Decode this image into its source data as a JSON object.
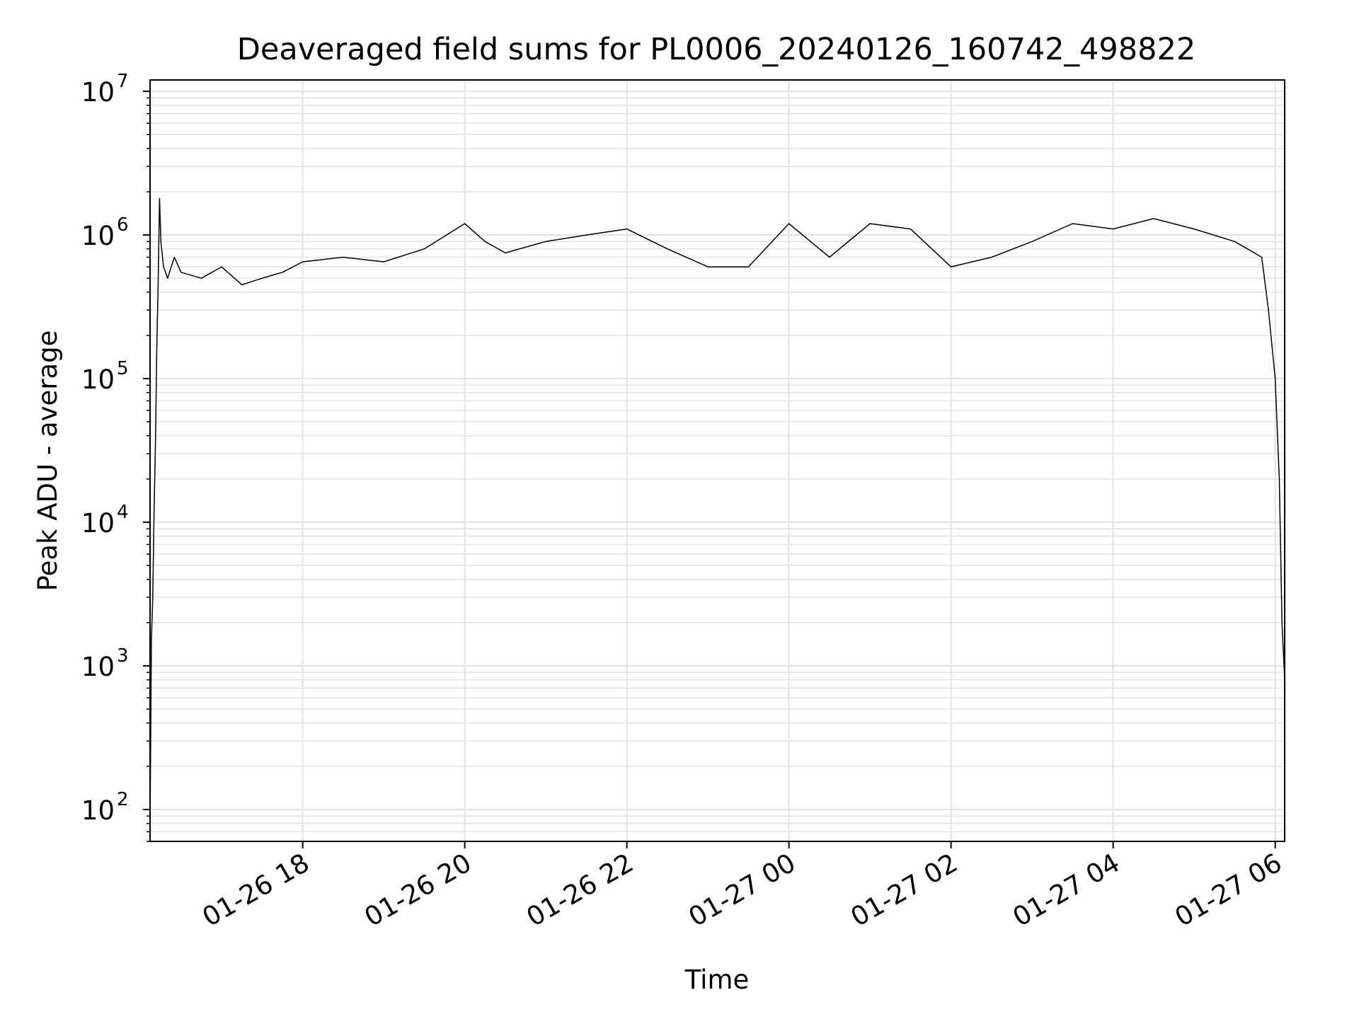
{
  "chart_data": {
    "type": "line",
    "title": "Deaveraged field sums for PL0006_20240126_160742_498822",
    "xlabel": "Time",
    "ylabel": "Peak ADU - average",
    "yscale": "log",
    "ylim": [
      60,
      12000000
    ],
    "xlim": [
      "2024-01-26 16:07",
      "2024-01-27 06:07"
    ],
    "x_tick_labels": [
      "01-26 18",
      "01-26 20",
      "01-26 22",
      "01-27 00",
      "01-27 02",
      "01-27 04",
      "01-27 06"
    ],
    "x_tick_values": [
      "2024-01-26 18:00",
      "2024-01-26 20:00",
      "2024-01-26 22:00",
      "2024-01-27 00:00",
      "2024-01-27 02:00",
      "2024-01-27 04:00",
      "2024-01-27 06:00"
    ],
    "y_tick_values": [
      100,
      1000,
      10000,
      100000,
      1000000,
      10000000
    ],
    "y_tick_bases": [
      "10",
      "10",
      "10",
      "10",
      "10",
      "10"
    ],
    "y_tick_exponents": [
      "2",
      "3",
      "4",
      "5",
      "6",
      "7"
    ],
    "grid": true,
    "line_color": "#000000",
    "series": [
      {
        "x": [
          "2024-01-26 16:07",
          "2024-01-26 16:08",
          "2024-01-26 16:09",
          "2024-01-26 16:10",
          "2024-01-26 16:11",
          "2024-01-26 16:12",
          "2024-01-26 16:13",
          "2024-01-26 16:14",
          "2024-01-26 16:15",
          "2024-01-26 16:17",
          "2024-01-26 16:20",
          "2024-01-26 16:25",
          "2024-01-26 16:30",
          "2024-01-26 16:45",
          "2024-01-26 17:00",
          "2024-01-26 17:15",
          "2024-01-26 17:30",
          "2024-01-26 17:45",
          "2024-01-26 18:00",
          "2024-01-26 18:30",
          "2024-01-26 19:00",
          "2024-01-26 19:30",
          "2024-01-26 20:00",
          "2024-01-26 20:15",
          "2024-01-26 20:30",
          "2024-01-26 21:00",
          "2024-01-26 21:30",
          "2024-01-26 22:00",
          "2024-01-26 22:30",
          "2024-01-26 23:00",
          "2024-01-26 23:30",
          "2024-01-27 00:00",
          "2024-01-27 00:30",
          "2024-01-27 01:00",
          "2024-01-27 01:30",
          "2024-01-27 02:00",
          "2024-01-27 02:30",
          "2024-01-27 03:00",
          "2024-01-27 03:30",
          "2024-01-27 04:00",
          "2024-01-27 04:30",
          "2024-01-27 05:00",
          "2024-01-27 05:30",
          "2024-01-27 05:50",
          "2024-01-27 05:55",
          "2024-01-27 06:00",
          "2024-01-27 06:03",
          "2024-01-27 06:05",
          "2024-01-27 06:07"
        ],
        "y": [
          80,
          1500,
          3000,
          12000,
          35000,
          160000,
          450000,
          1800000,
          900000,
          600000,
          500000,
          700000,
          550000,
          500000,
          600000,
          450000,
          500000,
          550000,
          650000,
          700000,
          650000,
          800000,
          1200000,
          900000,
          750000,
          900000,
          1000000,
          1100000,
          800000,
          600000,
          600000,
          1200000,
          700000,
          1200000,
          1100000,
          600000,
          700000,
          900000,
          1200000,
          1100000,
          1300000,
          1100000,
          900000,
          700000,
          300000,
          100000,
          20000,
          2000,
          800
        ]
      }
    ]
  }
}
